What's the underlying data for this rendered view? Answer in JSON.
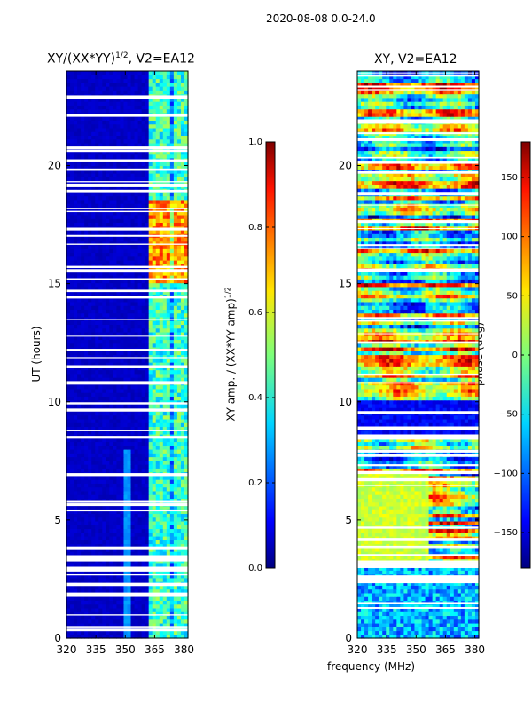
{
  "page": {
    "suptitle": "2020-08-08 0.0-24.0",
    "shared_xlabel": "frequency (MHz)"
  },
  "chart_data": [
    {
      "type": "heatmap",
      "title_main": "XY/(XX*YY)",
      "title_sup": "1/2",
      "title_tail": ", V2=EA12",
      "ylabel": "UT (hours)",
      "xlim": [
        320,
        382
      ],
      "ylim": [
        0,
        24
      ],
      "xticks": [
        "320",
        "335",
        "350",
        "365",
        "380"
      ],
      "yticks": [
        "0",
        "5",
        "10",
        "15",
        "20"
      ],
      "description": "normalized cross-correlation amplitude; near zero below 360 MHz, elevated 360-380 MHz, peaks ~15-18 UT",
      "colorbar": {
        "label_main": "XY amp. / (XX*YY amp)",
        "label_sup": "1/2",
        "range": [
          0.0,
          1.0
        ],
        "ticks": [
          "0.0",
          "0.2",
          "0.4",
          "0.6",
          "0.8",
          "1.0"
        ],
        "colormap": "jet"
      }
    },
    {
      "type": "heatmap",
      "title": "XY, V2=EA12",
      "xlim": [
        320,
        382
      ],
      "ylim": [
        0,
        24
      ],
      "xticks": [
        "320",
        "335",
        "350",
        "365",
        "380"
      ],
      "yticks": [
        "0",
        "5",
        "10",
        "15",
        "20"
      ],
      "description": "cross-correlation phase vs frequency and time, wrapped -180..180 degrees",
      "colorbar": {
        "label": "phase (deg)",
        "range": [
          -180,
          180
        ],
        "ticks": [
          "150",
          "100",
          "50",
          "0",
          "−50",
          "−100",
          "−150"
        ],
        "colormap": "jet"
      }
    }
  ]
}
